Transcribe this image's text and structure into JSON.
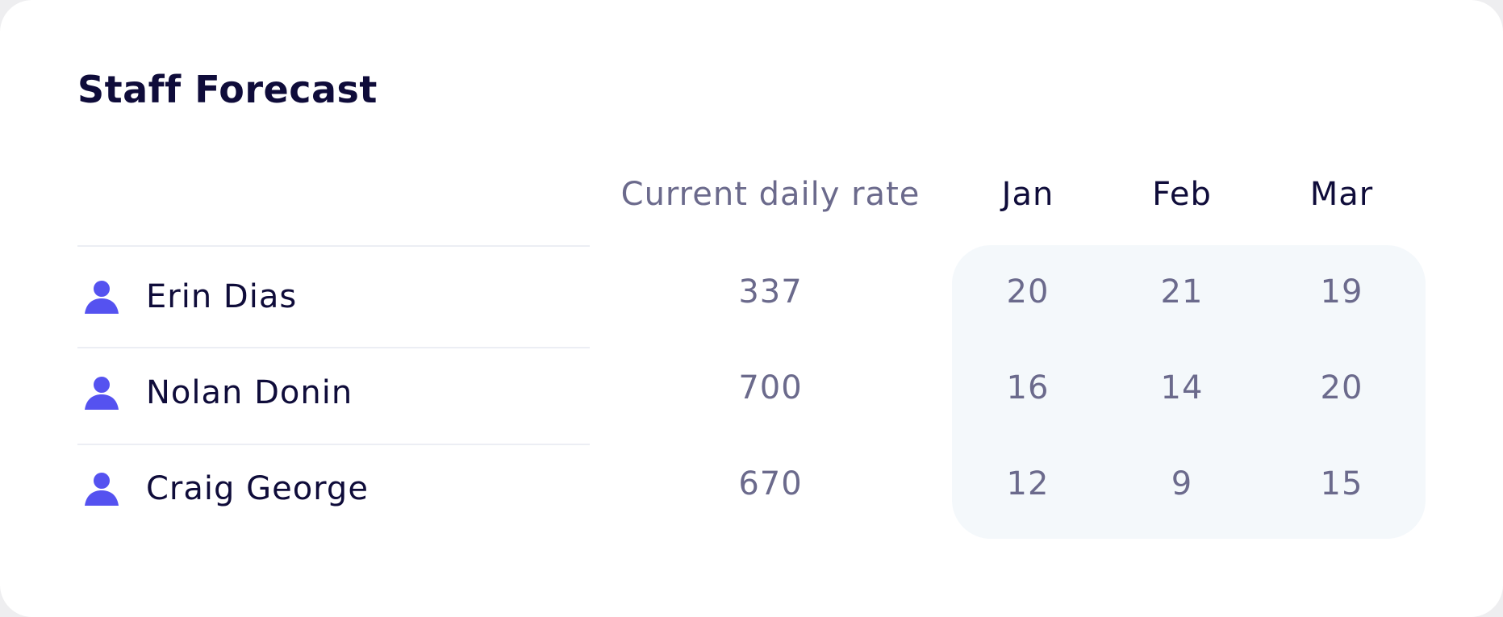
{
  "header": {
    "title": "Staff Forecast"
  },
  "table": {
    "columns": [
      "Current daily rate",
      "Jan",
      "Feb",
      "Mar"
    ],
    "rows": [
      {
        "name": "Erin Dias",
        "values": [
          337,
          20,
          21,
          19
        ]
      },
      {
        "name": "Nolan Donin",
        "values": [
          700,
          16,
          14,
          20
        ]
      },
      {
        "name": "Craig George",
        "values": [
          670,
          12,
          9,
          15
        ]
      }
    ]
  }
}
